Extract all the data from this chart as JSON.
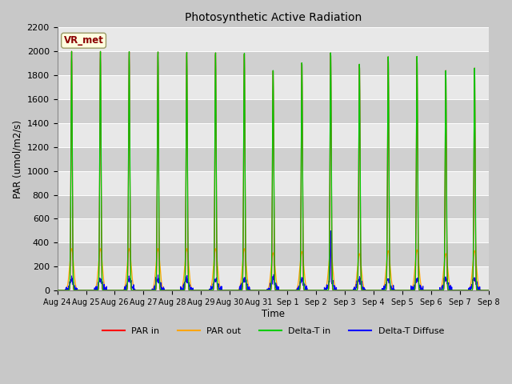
{
  "title": "Photosynthetic Active Radiation",
  "ylabel": "PAR (umol/m2/s)",
  "xlabel": "Time",
  "ylim": [
    0,
    2200
  ],
  "annotation_text": "VR_met",
  "background_color": "#c8c8c8",
  "plot_bg_alternating": [
    "#e8e8e8",
    "#d0d0d0"
  ],
  "grid_color": "white",
  "legend_labels": [
    "PAR in",
    "PAR out",
    "Delta-T in",
    "Delta-T Diffuse"
  ],
  "legend_colors": [
    "red",
    "orange",
    "#00cc00",
    "blue"
  ],
  "n_days": 15,
  "tick_labels": [
    "Aug 24",
    "Aug 25",
    "Aug 26",
    "Aug 27",
    "Aug 28",
    "Aug 29",
    "Aug 30",
    "Aug 31",
    "Sep 1",
    "Sep 2",
    "Sep 3",
    "Sep 4",
    "Sep 5",
    "Sep 6",
    "Sep 7",
    "Sep 8"
  ],
  "yticks": [
    0,
    200,
    400,
    600,
    800,
    1000,
    1200,
    1400,
    1600,
    1800,
    2000,
    2200
  ]
}
